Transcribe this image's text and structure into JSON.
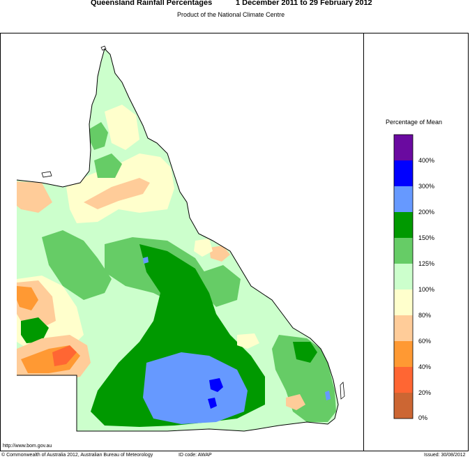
{
  "header": {
    "title": "Queensland Rainfall Percentages",
    "period": "1 December 2011 to 29 February 2012",
    "subtitle": "Product of the National Climate Centre"
  },
  "legend": {
    "title": "Percentage of Mean",
    "bins": [
      {
        "label": "400%",
        "color": "#6a0aa0"
      },
      {
        "label": "300%",
        "color": "#0000ff"
      },
      {
        "label": "200%",
        "color": "#6699ff"
      },
      {
        "label": "150%",
        "color": "#009900"
      },
      {
        "label": "125%",
        "color": "#66cc66"
      },
      {
        "label": "100%",
        "color": "#ccffcc"
      },
      {
        "label": "80%",
        "color": "#ffffcc"
      },
      {
        "label": "60%",
        "color": "#ffcc99"
      },
      {
        "label": "40%",
        "color": "#ff9933"
      },
      {
        "label": "20%",
        "color": "#ff6633"
      },
      {
        "label": "0%",
        "color": "#cc6633"
      }
    ]
  },
  "footer": {
    "url": "http://www.bom.gov.au",
    "copyright": "© Commonwealth of Australia 2012, Australian Bureau of Meteorology",
    "id_code": "ID code: AWAP",
    "issued": "Issued: 30/08/2012"
  }
}
